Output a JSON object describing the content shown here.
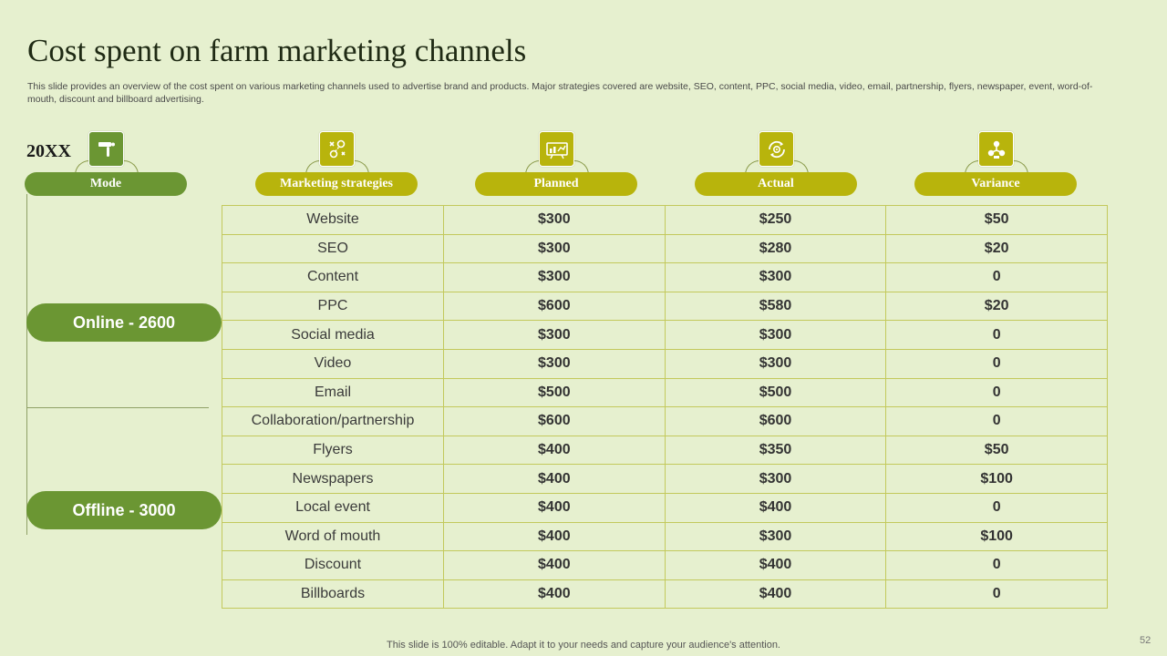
{
  "slide": {
    "title": "Cost spent on farm marketing channels",
    "subtitle": "This slide provides an overview of the cost spent on various marketing channels used to advertise brand and products. Major strategies covered are website, SEO,  content, PPC, social media, video, email, partnership, flyers, newspaper, event, word-of-mouth, discount and billboard advertising.",
    "year": "20XX",
    "footer": "This slide is 100% editable. Adapt it to your needs and capture your audience's attention.",
    "page_number": "52"
  },
  "colors": {
    "background": "#e6f0cf",
    "green": "#6b9633",
    "olive": "#b8b40c",
    "border": "#c3c95c"
  },
  "headers": [
    {
      "label": "Mode",
      "icon": "hand-tap-icon"
    },
    {
      "label": "Marketing strategies",
      "icon": "strategy-icon"
    },
    {
      "label": "Planned",
      "icon": "chart-board-icon"
    },
    {
      "label": "Actual",
      "icon": "gear-refresh-icon"
    },
    {
      "label": "Variance",
      "icon": "network-nodes-icon"
    }
  ],
  "modes": {
    "online": "Online - 2600",
    "offline": "Offline - 3000"
  },
  "rows": [
    {
      "strategy": "Website",
      "planned": "$300",
      "actual": "$250",
      "variance": "$50"
    },
    {
      "strategy": "SEO",
      "planned": "$300",
      "actual": "$280",
      "variance": "$20"
    },
    {
      "strategy": "Content",
      "planned": "$300",
      "actual": "$300",
      "variance": "0"
    },
    {
      "strategy": "PPC",
      "planned": "$600",
      "actual": "$580",
      "variance": "$20"
    },
    {
      "strategy": "Social media",
      "planned": "$300",
      "actual": "$300",
      "variance": "0"
    },
    {
      "strategy": "Video",
      "planned": "$300",
      "actual": "$300",
      "variance": "0"
    },
    {
      "strategy": "Email",
      "planned": "$500",
      "actual": "$500",
      "variance": "0"
    },
    {
      "strategy": "Collaboration/partnership",
      "planned": "$600",
      "actual": "$600",
      "variance": "0"
    },
    {
      "strategy": "Flyers",
      "planned": "$400",
      "actual": "$350",
      "variance": "$50"
    },
    {
      "strategy": "Newspapers",
      "planned": "$400",
      "actual": "$300",
      "variance": "$100"
    },
    {
      "strategy": "Local event",
      "planned": "$400",
      "actual": "$400",
      "variance": "0"
    },
    {
      "strategy": "Word of mouth",
      "planned": "$400",
      "actual": "$300",
      "variance": "$100"
    },
    {
      "strategy": "Discount",
      "planned": "$400",
      "actual": "$400",
      "variance": "0"
    },
    {
      "strategy": "Billboards",
      "planned": "$400",
      "actual": "$400",
      "variance": "0"
    }
  ]
}
